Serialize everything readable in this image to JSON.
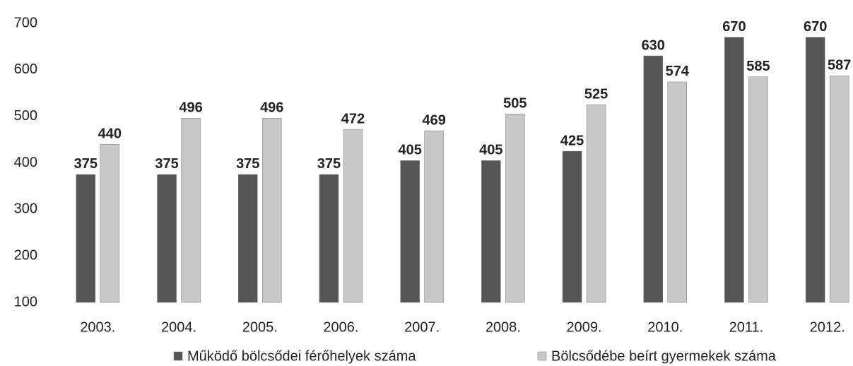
{
  "chart_data": {
    "type": "bar",
    "categories": [
      "2003.",
      "2004.",
      "2005.",
      "2006.",
      "2007.",
      "2008.",
      "2009.",
      "2010.",
      "2011.",
      "2012."
    ],
    "series": [
      {
        "name": "Működő bölcsődei férőhelyek száma",
        "color": "#555555",
        "values": [
          375,
          375,
          375,
          375,
          405,
          405,
          425,
          630,
          670,
          670
        ]
      },
      {
        "name": "Bölcsődébe beírt gyermekek száma",
        "color": "#c8c8c8",
        "values": [
          440,
          496,
          496,
          472,
          469,
          505,
          525,
          574,
          585,
          587
        ]
      }
    ],
    "ylim": [
      100,
      700
    ],
    "yticks": [
      100,
      200,
      300,
      400,
      500,
      600,
      700
    ],
    "grid": false,
    "legend": "bottom"
  }
}
